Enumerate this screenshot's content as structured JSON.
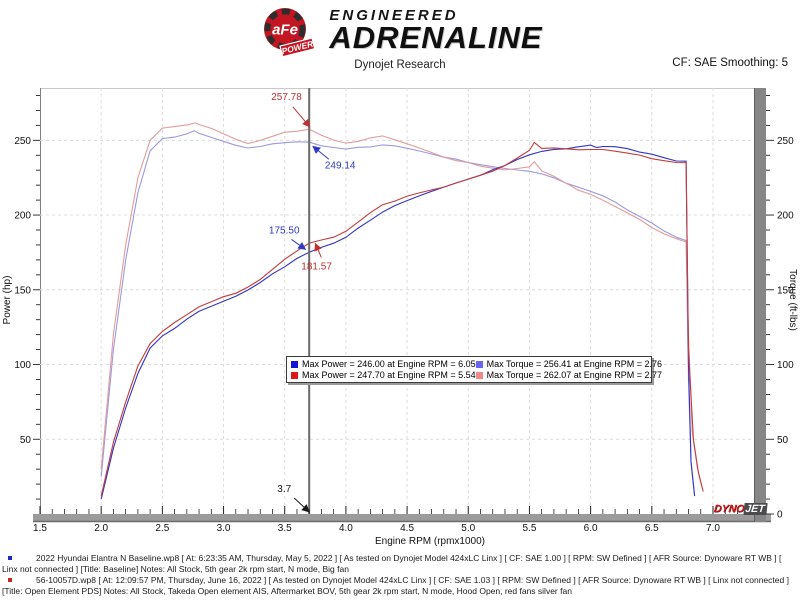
{
  "header": {
    "brand": {
      "badge_text": "aFe",
      "badge_sub": "POWER",
      "line1": "ENGINEERED",
      "line2": "ADRENALINE"
    },
    "subtitle": "Dynojet Research",
    "smoothing_label": "CF: SAE Smoothing: 5"
  },
  "chart_data": {
    "type": "line",
    "title": "Dynojet Research",
    "xlabel": "Engine RPM (rpmx1000)",
    "ylabel_left": "Power (hp)",
    "ylabel_right": "Torque (ft-lbs)",
    "x_ticks": [
      "1.5",
      "2.0",
      "2.5",
      "3.0",
      "3.5",
      "4.0",
      "4.5",
      "5.0",
      "5.5",
      "6.0",
      "6.5",
      "7.0"
    ],
    "y_ticks_left": [
      "50",
      "100",
      "150",
      "200",
      "250"
    ],
    "y_ticks_right": [
      "50",
      "100",
      "150",
      "200",
      "250"
    ],
    "right_axis_zero_label": "0",
    "xlim": [
      1.5,
      7.35
    ],
    "ylim": [
      0,
      285
    ],
    "grid": true,
    "cursor": {
      "rpm": 3.7,
      "label": "3.7"
    },
    "series": [
      {
        "id": "torque_blue",
        "name": "Torque - Baseline",
        "color": "#9a9ade",
        "axis": "right",
        "points": [
          [
            2.0,
            25
          ],
          [
            2.1,
            110
          ],
          [
            2.2,
            170
          ],
          [
            2.3,
            215
          ],
          [
            2.4,
            243
          ],
          [
            2.5,
            252
          ],
          [
            2.6,
            253
          ],
          [
            2.7,
            255
          ],
          [
            2.76,
            256.4
          ],
          [
            2.8,
            255
          ],
          [
            2.9,
            252
          ],
          [
            3.0,
            249
          ],
          [
            3.1,
            246
          ],
          [
            3.2,
            244
          ],
          [
            3.3,
            245
          ],
          [
            3.4,
            247
          ],
          [
            3.5,
            248
          ],
          [
            3.6,
            249
          ],
          [
            3.7,
            249.1
          ],
          [
            3.8,
            247
          ],
          [
            3.9,
            246
          ],
          [
            4.0,
            245
          ],
          [
            4.1,
            246
          ],
          [
            4.2,
            246
          ],
          [
            4.3,
            247
          ],
          [
            4.4,
            246
          ],
          [
            4.5,
            244
          ],
          [
            4.6,
            242
          ],
          [
            4.7,
            240
          ],
          [
            4.8,
            238
          ],
          [
            4.9,
            237
          ],
          [
            5.0,
            235
          ],
          [
            5.1,
            234
          ],
          [
            5.2,
            233
          ],
          [
            5.3,
            232
          ],
          [
            5.4,
            231
          ],
          [
            5.5,
            230
          ],
          [
            5.6,
            228
          ],
          [
            5.7,
            225
          ],
          [
            5.8,
            221
          ],
          [
            5.9,
            218
          ],
          [
            6.0,
            215
          ],
          [
            6.1,
            212
          ],
          [
            6.2,
            208
          ],
          [
            6.3,
            203
          ],
          [
            6.4,
            199
          ],
          [
            6.5,
            195
          ],
          [
            6.6,
            190
          ],
          [
            6.7,
            186
          ],
          [
            6.78,
            183
          ],
          [
            6.8,
            90
          ],
          [
            6.82,
            35
          ],
          [
            6.85,
            12
          ]
        ]
      },
      {
        "id": "torque_red",
        "name": "Torque - Open Element PDS",
        "color": "#e29c9c",
        "axis": "right",
        "points": [
          [
            2.0,
            30
          ],
          [
            2.1,
            120
          ],
          [
            2.2,
            180
          ],
          [
            2.3,
            225
          ],
          [
            2.4,
            250
          ],
          [
            2.5,
            259
          ],
          [
            2.6,
            260
          ],
          [
            2.7,
            261
          ],
          [
            2.77,
            262.1
          ],
          [
            2.8,
            261
          ],
          [
            2.9,
            258
          ],
          [
            3.0,
            254
          ],
          [
            3.1,
            250
          ],
          [
            3.2,
            247
          ],
          [
            3.3,
            249
          ],
          [
            3.4,
            252
          ],
          [
            3.5,
            255
          ],
          [
            3.6,
            256
          ],
          [
            3.7,
            257.8
          ],
          [
            3.8,
            254
          ],
          [
            3.9,
            251
          ],
          [
            4.0,
            249
          ],
          [
            4.1,
            250
          ],
          [
            4.2,
            252
          ],
          [
            4.3,
            253
          ],
          [
            4.4,
            250
          ],
          [
            4.5,
            247
          ],
          [
            4.6,
            244
          ],
          [
            4.7,
            241
          ],
          [
            4.8,
            238
          ],
          [
            4.9,
            236
          ],
          [
            5.0,
            235
          ],
          [
            5.1,
            233
          ],
          [
            5.2,
            232
          ],
          [
            5.3,
            231
          ],
          [
            5.4,
            232
          ],
          [
            5.5,
            233
          ],
          [
            5.54,
            234.8
          ],
          [
            5.6,
            230
          ],
          [
            5.7,
            226
          ],
          [
            5.8,
            221
          ],
          [
            5.9,
            216
          ],
          [
            6.0,
            213
          ],
          [
            6.1,
            209
          ],
          [
            6.2,
            205
          ],
          [
            6.3,
            201
          ],
          [
            6.4,
            197
          ],
          [
            6.5,
            192
          ],
          [
            6.6,
            188
          ],
          [
            6.7,
            185
          ],
          [
            6.78,
            182
          ],
          [
            6.8,
            120
          ],
          [
            6.83,
            55
          ],
          [
            6.87,
            32
          ],
          [
            6.91,
            18
          ]
        ]
      },
      {
        "id": "power_blue",
        "name": "Power - Baseline",
        "color": "#3434c4",
        "axis": "left",
        "points": [
          [
            2.0,
            10
          ],
          [
            2.1,
            44
          ],
          [
            2.2,
            71
          ],
          [
            2.3,
            94
          ],
          [
            2.4,
            111
          ],
          [
            2.5,
            120
          ],
          [
            2.6,
            125
          ],
          [
            2.7,
            131
          ],
          [
            2.8,
            136
          ],
          [
            2.9,
            139
          ],
          [
            3.0,
            142
          ],
          [
            3.1,
            145
          ],
          [
            3.2,
            149
          ],
          [
            3.3,
            154
          ],
          [
            3.4,
            160
          ],
          [
            3.5,
            165
          ],
          [
            3.6,
            171
          ],
          [
            3.7,
            175.5
          ],
          [
            3.8,
            179
          ],
          [
            3.9,
            182
          ],
          [
            4.0,
            186
          ],
          [
            4.1,
            192
          ],
          [
            4.2,
            197
          ],
          [
            4.3,
            202
          ],
          [
            4.4,
            206
          ],
          [
            4.5,
            209
          ],
          [
            4.6,
            212
          ],
          [
            4.7,
            215
          ],
          [
            4.8,
            218
          ],
          [
            4.9,
            221
          ],
          [
            5.0,
            224
          ],
          [
            5.1,
            227
          ],
          [
            5.2,
            231
          ],
          [
            5.3,
            234
          ],
          [
            5.4,
            238
          ],
          [
            5.5,
            241
          ],
          [
            5.6,
            243
          ],
          [
            5.7,
            244
          ],
          [
            5.8,
            244
          ],
          [
            5.9,
            245
          ],
          [
            6.0,
            246
          ],
          [
            6.05,
            246
          ],
          [
            6.1,
            245
          ],
          [
            6.2,
            245
          ],
          [
            6.3,
            244
          ],
          [
            6.4,
            242
          ],
          [
            6.5,
            241
          ],
          [
            6.6,
            239
          ],
          [
            6.7,
            237
          ],
          [
            6.78,
            236
          ],
          [
            6.8,
            100
          ],
          [
            6.82,
            35
          ],
          [
            6.85,
            12
          ]
        ]
      },
      {
        "id": "power_red",
        "name": "Power - Open Element PDS",
        "color": "#c43c3c",
        "axis": "left",
        "points": [
          [
            2.0,
            12
          ],
          [
            2.1,
            48
          ],
          [
            2.2,
            75
          ],
          [
            2.3,
            99
          ],
          [
            2.4,
            114
          ],
          [
            2.5,
            123
          ],
          [
            2.6,
            129
          ],
          [
            2.7,
            134
          ],
          [
            2.8,
            139
          ],
          [
            2.9,
            142
          ],
          [
            3.0,
            145
          ],
          [
            3.1,
            147
          ],
          [
            3.2,
            151
          ],
          [
            3.3,
            156
          ],
          [
            3.4,
            163
          ],
          [
            3.5,
            170
          ],
          [
            3.6,
            176
          ],
          [
            3.7,
            181.6
          ],
          [
            3.8,
            184
          ],
          [
            3.9,
            186
          ],
          [
            4.0,
            190
          ],
          [
            4.1,
            196
          ],
          [
            4.2,
            202
          ],
          [
            4.3,
            207
          ],
          [
            4.4,
            209
          ],
          [
            4.5,
            212
          ],
          [
            4.6,
            214
          ],
          [
            4.7,
            216
          ],
          [
            4.8,
            218
          ],
          [
            4.9,
            221
          ],
          [
            5.0,
            224
          ],
          [
            5.1,
            227
          ],
          [
            5.2,
            230
          ],
          [
            5.3,
            234
          ],
          [
            5.4,
            239
          ],
          [
            5.5,
            244
          ],
          [
            5.54,
            247.7
          ],
          [
            5.6,
            245
          ],
          [
            5.7,
            245
          ],
          [
            5.8,
            244
          ],
          [
            5.9,
            243
          ],
          [
            6.0,
            243
          ],
          [
            6.1,
            243
          ],
          [
            6.2,
            242
          ],
          [
            6.3,
            241
          ],
          [
            6.4,
            240
          ],
          [
            6.5,
            238
          ],
          [
            6.6,
            237
          ],
          [
            6.7,
            236
          ],
          [
            6.78,
            235
          ],
          [
            6.8,
            110
          ],
          [
            6.84,
            50
          ],
          [
            6.88,
            28
          ],
          [
            6.92,
            15
          ]
        ]
      }
    ],
    "annotations": [
      {
        "text": "257.78",
        "color": "#c03030",
        "anchor_rpm": 3.705,
        "anchor_value": 259
      },
      {
        "text": "249.14",
        "color": "#3038c8",
        "anchor_rpm": 3.73,
        "anchor_value": 246
      },
      {
        "text": "175.50",
        "color": "#3038c8",
        "anchor_rpm": 3.67,
        "anchor_value": 177
      },
      {
        "text": "181.57",
        "color": "#c03030",
        "anchor_rpm": 3.75,
        "anchor_value": 181
      },
      {
        "text": "3.7",
        "color": "#1a1a1a",
        "anchor_rpm": 3.7,
        "anchor_value": 0
      }
    ],
    "legend": {
      "position": "bottom-center-inside",
      "items": [
        {
          "color": "#1414d2",
          "label": "Max Power = 246.00 at Engine RPM = 6.05"
        },
        {
          "color": "#6868ee",
          "label": "Max Torque = 256.41 at Engine RPM = 2.76"
        },
        {
          "color": "#e01616",
          "label": "Max Power = 247.70 at Engine RPM = 5.54"
        },
        {
          "color": "#f08a8a",
          "label": "Max Torque = 262.07 at Engine RPM = 2.77"
        }
      ]
    }
  },
  "dynojet_logo": {
    "part1": "DYNO",
    "part2": "JET"
  },
  "footer": {
    "runs": [
      {
        "bullet_color": "#2424c8",
        "text": "2022 Hyundai Elantra N Baseline.wp8 [ At: 6:23:35 AM, Thursday, May 5, 2022 ] [ As tested on Dynojet Model 424xLC Linx ] [ CF: SAE 1.00 ] [ RPM: SW Defined ] [ AFR Source: Dynoware RT WB ] [ Linx not connected ] [Title: Baseline]  Notes: All Stock, 5th gear 2k rpm start, N mode, Big fan"
      },
      {
        "bullet_color": "#c82424",
        "text": "56-10057D.wp8 [ At: 12:09:57 PM, Thursday, June 16, 2022 ] [ As tested on Dynojet Model 424xLC Linx ] [ CF: SAE 1.03 ] [ RPM: SW Defined ] [ AFR Source: Dynoware RT WB ] [ Linx not connected ] [Title: Open Element PDS]  Notes: All Stock, Takeda Open element AIS, Aftermarket BOV, 5th gear 2k rpm start, N mode, Hood Open, red fans silver fan"
      }
    ]
  }
}
